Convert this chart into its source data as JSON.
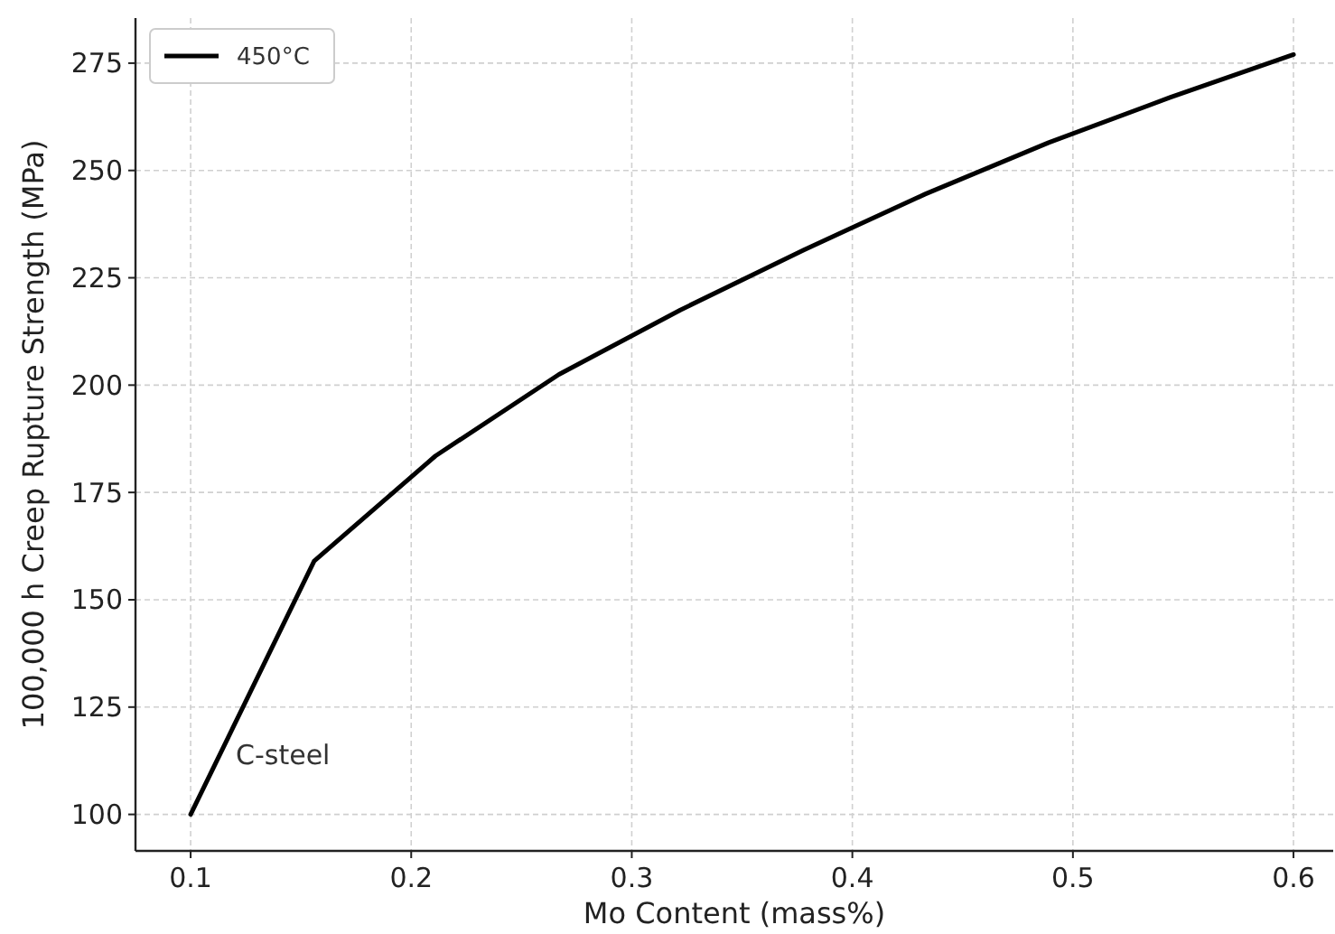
{
  "chart_data": {
    "type": "line",
    "xlabel": "Mo Content (mass%)",
    "ylabel": "100,000 h Creep Rupture Strength (MPa)",
    "x": [
      0.1,
      0.156,
      0.211,
      0.267,
      0.322,
      0.378,
      0.433,
      0.489,
      0.544,
      0.6
    ],
    "series": [
      {
        "name": "450°C",
        "color": "#000000",
        "values": [
          100,
          159,
          183.5,
          202.5,
          217.5,
          231.5,
          244.5,
          256.5,
          267,
          277
        ]
      }
    ],
    "xlim": [
      0.075,
      0.618
    ],
    "xticks": [
      0.1,
      0.2,
      0.3,
      0.4,
      0.5,
      0.6
    ],
    "ylim": [
      91.5,
      285.5
    ],
    "yticks": [
      100,
      125,
      150,
      175,
      200,
      225,
      250,
      275
    ],
    "annotations": [
      "C-steel"
    ],
    "grid": true,
    "legend": "top left",
    "marker": "none",
    "line_style": "solid"
  }
}
